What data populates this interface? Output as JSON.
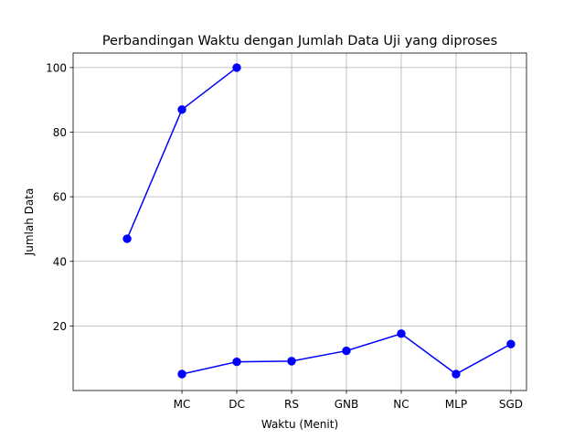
{
  "chart_data": {
    "type": "line",
    "title": "Perbandingan Waktu dengan Jumlah Data Uji yang diproses",
    "xlabel": "Waktu (Menit)",
    "ylabel": "Jumlah Data",
    "categories": [
      "MC",
      "DC",
      "RS",
      "GNB",
      "NC",
      "MLP",
      "SGD"
    ],
    "ylim": [
      0,
      104.5
    ],
    "yticks": [
      20,
      40,
      60,
      80,
      100
    ],
    "grid": true,
    "series": [
      {
        "x": [
          0,
          1,
          2
        ],
        "values": [
          47,
          87,
          100
        ],
        "color": "#0000ff",
        "marker": "circle"
      },
      {
        "x": [
          1,
          2,
          3,
          4,
          5,
          6,
          7
        ],
        "values": [
          5.1,
          8.9,
          9.1,
          12.3,
          17.6,
          5.1,
          14.4
        ],
        "color": "#0000ff",
        "marker": "circle"
      }
    ]
  }
}
